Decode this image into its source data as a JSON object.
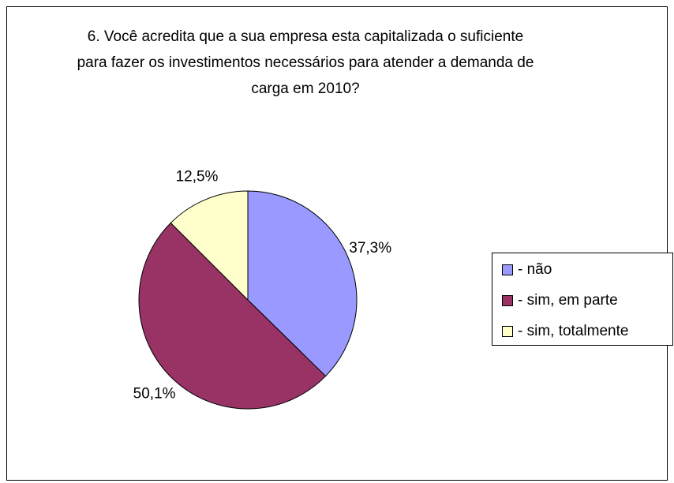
{
  "chart_data": {
    "type": "pie",
    "title": "6. Você acredita que a sua empresa esta capitalizada o suficiente para fazer os investimentos necessários para atender a demanda de carga em 2010?",
    "categories": [
      "- não",
      "- sim, em parte",
      "- sim, totalmente"
    ],
    "values": [
      37.3,
      50.1,
      12.5
    ],
    "value_labels": [
      "37,3%",
      "50,1%",
      "12,5%"
    ],
    "colors": [
      "#9999ff",
      "#993366",
      "#ffffcc"
    ],
    "legend": "right"
  }
}
